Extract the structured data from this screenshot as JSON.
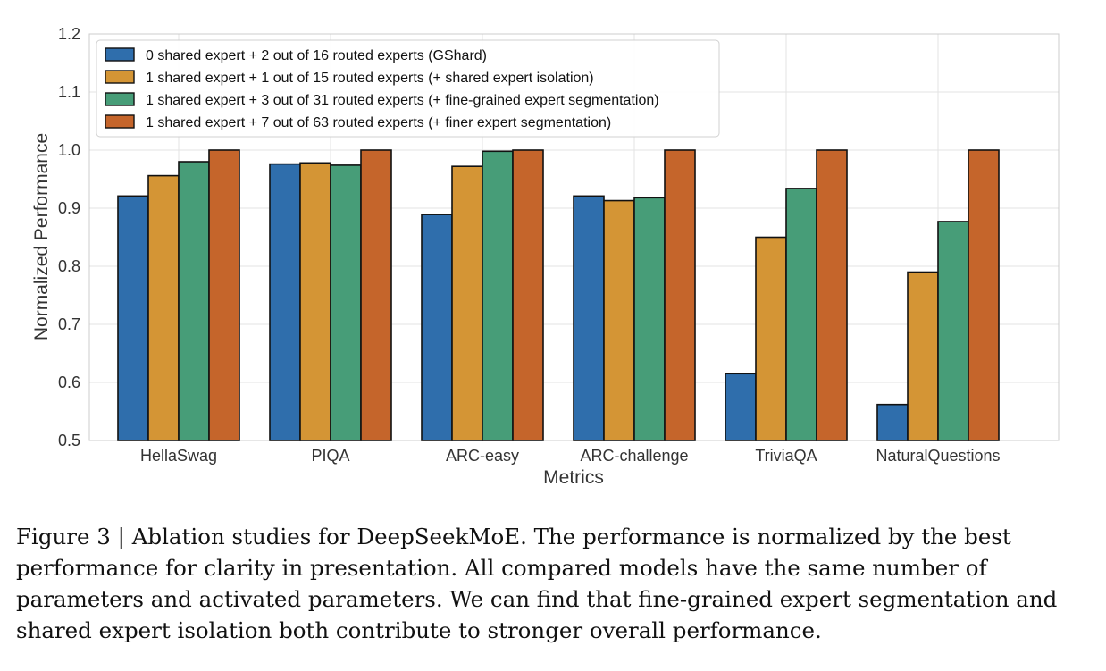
{
  "chart_data": {
    "type": "bar",
    "title": "",
    "xlabel": "Metrics",
    "ylabel": "Normalized Performance",
    "ylim": [
      0.5,
      1.2
    ],
    "yticks": [
      "0.5",
      "0.6",
      "0.7",
      "0.8",
      "0.9",
      "1.0",
      "1.1",
      "1.2"
    ],
    "grid": true,
    "legend_position": "top-left",
    "categories": [
      "HellaSwag",
      "PIQA",
      "ARC-easy",
      "ARC-challenge",
      "TriviaQA",
      "NaturalQuestions"
    ],
    "series": [
      {
        "name": "0 shared expert + 2 out of 16 routed experts (GShard)",
        "color": "#2f6eac",
        "values": [
          0.921,
          0.976,
          0.889,
          0.921,
          0.615,
          0.562
        ]
      },
      {
        "name": "1 shared expert + 1 out of 15 routed experts (+ shared expert isolation)",
        "color": "#d49535",
        "values": [
          0.956,
          0.978,
          0.972,
          0.913,
          0.85,
          0.79
        ]
      },
      {
        "name": "1 shared expert + 3 out of 31 routed experts (+ fine-grained expert segmentation)",
        "color": "#479d78",
        "values": [
          0.98,
          0.974,
          0.998,
          0.918,
          0.934,
          0.877
        ]
      },
      {
        "name": "1 shared expert + 7 out of 63 routed experts (+ finer expert segmentation)",
        "color": "#c5652b",
        "values": [
          1.0,
          1.0,
          1.0,
          1.0,
          1.0,
          1.0
        ]
      }
    ]
  },
  "caption": "Figure 3 | Ablation studies for DeepSeekMoE. The performance is normalized by the best performance for clarity in presentation. All compared models have the same number of parameters and activated parameters. We can find that fine-grained expert segmentation and shared expert isolation both contribute to stronger overall performance."
}
